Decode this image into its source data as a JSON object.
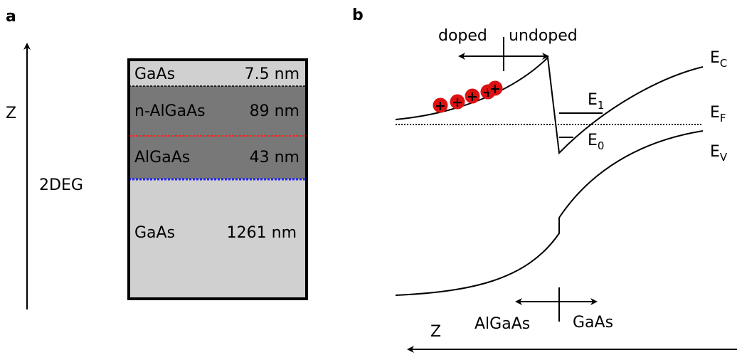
{
  "panel_a": {
    "label": "a",
    "axis_label": "Z",
    "twodeg_label": "2DEG",
    "layers": [
      {
        "material": "GaAs",
        "thickness": "7.5 nm",
        "color": "#d0d0d0"
      },
      {
        "material": "n-AlGaAs",
        "thickness": "89 nm",
        "color": "#787878"
      },
      {
        "material": "AlGaAs",
        "thickness": "43 nm",
        "color": "#787878"
      },
      {
        "material": "GaAs",
        "thickness": "1261 nm",
        "color": "#d0d0d0"
      }
    ],
    "dopant_line_color": "#ff2020",
    "twodeg_line_color": "#2020ff",
    "twodeg_text_color": "#1a1ad0"
  },
  "panel_b": {
    "label": "b",
    "doped_label": "doped",
    "undoped_label": "undoped",
    "left_material": "AlGaAs",
    "right_material": "GaAs",
    "axis_label": "Z",
    "level_E1": {
      "main": "E",
      "sub": "1"
    },
    "level_E0": {
      "main": "E",
      "sub": "0"
    },
    "band_EC": {
      "main": "E",
      "sub": "C"
    },
    "band_EF": {
      "main": "E",
      "sub": "F"
    },
    "band_EV": {
      "main": "E",
      "sub": "V"
    },
    "donor_symbol": "+",
    "donor_count": 5,
    "donor_color": "#dd1111"
  }
}
